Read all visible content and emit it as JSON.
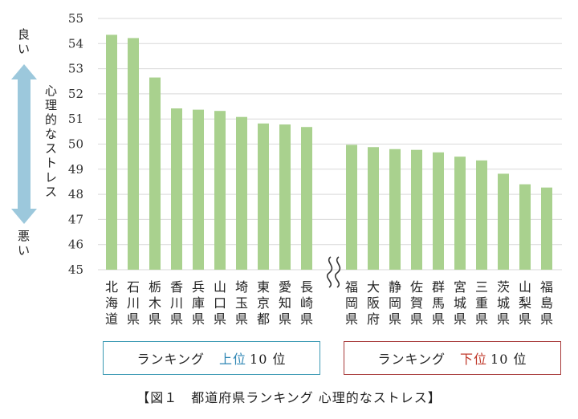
{
  "chart_data": {
    "type": "bar",
    "title": "",
    "xlabel": "",
    "ylabel": "心理的なストレス",
    "ylim": [
      45,
      55
    ],
    "yticks": [
      45,
      46,
      47,
      48,
      49,
      50,
      51,
      52,
      53,
      54,
      55
    ],
    "grid": true,
    "scale_top_label": "良い",
    "scale_bottom_label": "悪い",
    "categories": [
      "北海道",
      "石川県",
      "栃木県",
      "香川県",
      "兵庫県",
      "山口県",
      "埼玉県",
      "東京都",
      "愛知県",
      "長崎県",
      "福岡県",
      "大阪府",
      "静岡県",
      "佐賀県",
      "群馬県",
      "宮城県",
      "三重県",
      "茨城県",
      "山梨県",
      "福島県"
    ],
    "values": [
      54.35,
      54.22,
      52.65,
      51.42,
      51.37,
      51.32,
      51.08,
      50.82,
      50.78,
      50.68,
      49.97,
      49.88,
      49.8,
      49.77,
      49.67,
      49.5,
      49.35,
      48.82,
      48.4,
      48.27
    ],
    "bar_color": "#a9d18e",
    "groups": [
      {
        "label": "ランキング",
        "highlight": "上位",
        "count": "10 位",
        "accent": "#2e86b4",
        "border": "#3a99b3"
      },
      {
        "label": "ランキング",
        "highlight": "下位",
        "count": "10 位",
        "accent": "#c0392b",
        "border": "#a83a3a"
      }
    ]
  },
  "caption": "【図１　都道府県ランキング 心理的なストレス】"
}
